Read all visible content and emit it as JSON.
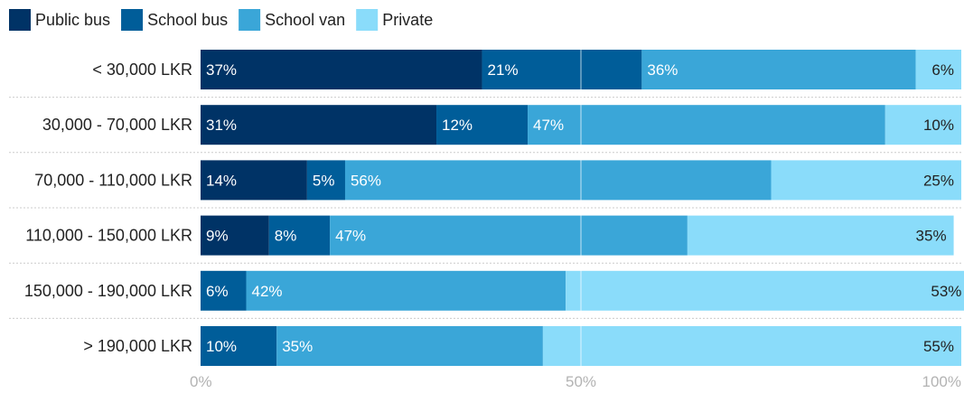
{
  "chart_data": {
    "type": "bar",
    "orientation": "horizontal",
    "stacked": true,
    "percent": true,
    "title": "",
    "xlabel": "",
    "ylabel": "",
    "xlim": [
      0,
      100
    ],
    "ticks": [
      "0%",
      "50%",
      "100%"
    ],
    "legend_position": "top-left",
    "categories": [
      "< 30,000 LKR",
      "30,000 - 70,000 LKR",
      "70,000 - 110,000 LKR",
      "110,000 - 150,000 LKR",
      "150,000 - 190,000 LKR",
      "> 190,000 LKR"
    ],
    "series": [
      {
        "name": "Public bus",
        "color": "#003366",
        "label_color": "#ffffff",
        "values": [
          37,
          31,
          14,
          9,
          0,
          0
        ],
        "labels": [
          "37%",
          "31%",
          "14%",
          "9%",
          "",
          ""
        ]
      },
      {
        "name": "School bus",
        "color": "#005d99",
        "label_color": "#ffffff",
        "values": [
          21,
          12,
          5,
          8,
          6,
          10
        ],
        "labels": [
          "21%",
          "12%",
          "5%",
          "8%",
          "6%",
          "10%"
        ]
      },
      {
        "name": "School van",
        "color": "#3aa6d8",
        "label_color": "#ffffff",
        "values": [
          36,
          47,
          56,
          47,
          42,
          35
        ],
        "labels": [
          "36%",
          "47%",
          "56%",
          "47%",
          "42%",
          "35%"
        ]
      },
      {
        "name": "Private",
        "color": "#8adcfa",
        "label_color": "#222222",
        "values": [
          6,
          10,
          25,
          35,
          53,
          55
        ],
        "labels": [
          "6%",
          "10%",
          "25%",
          "35%",
          "53%",
          "55%"
        ]
      }
    ]
  }
}
